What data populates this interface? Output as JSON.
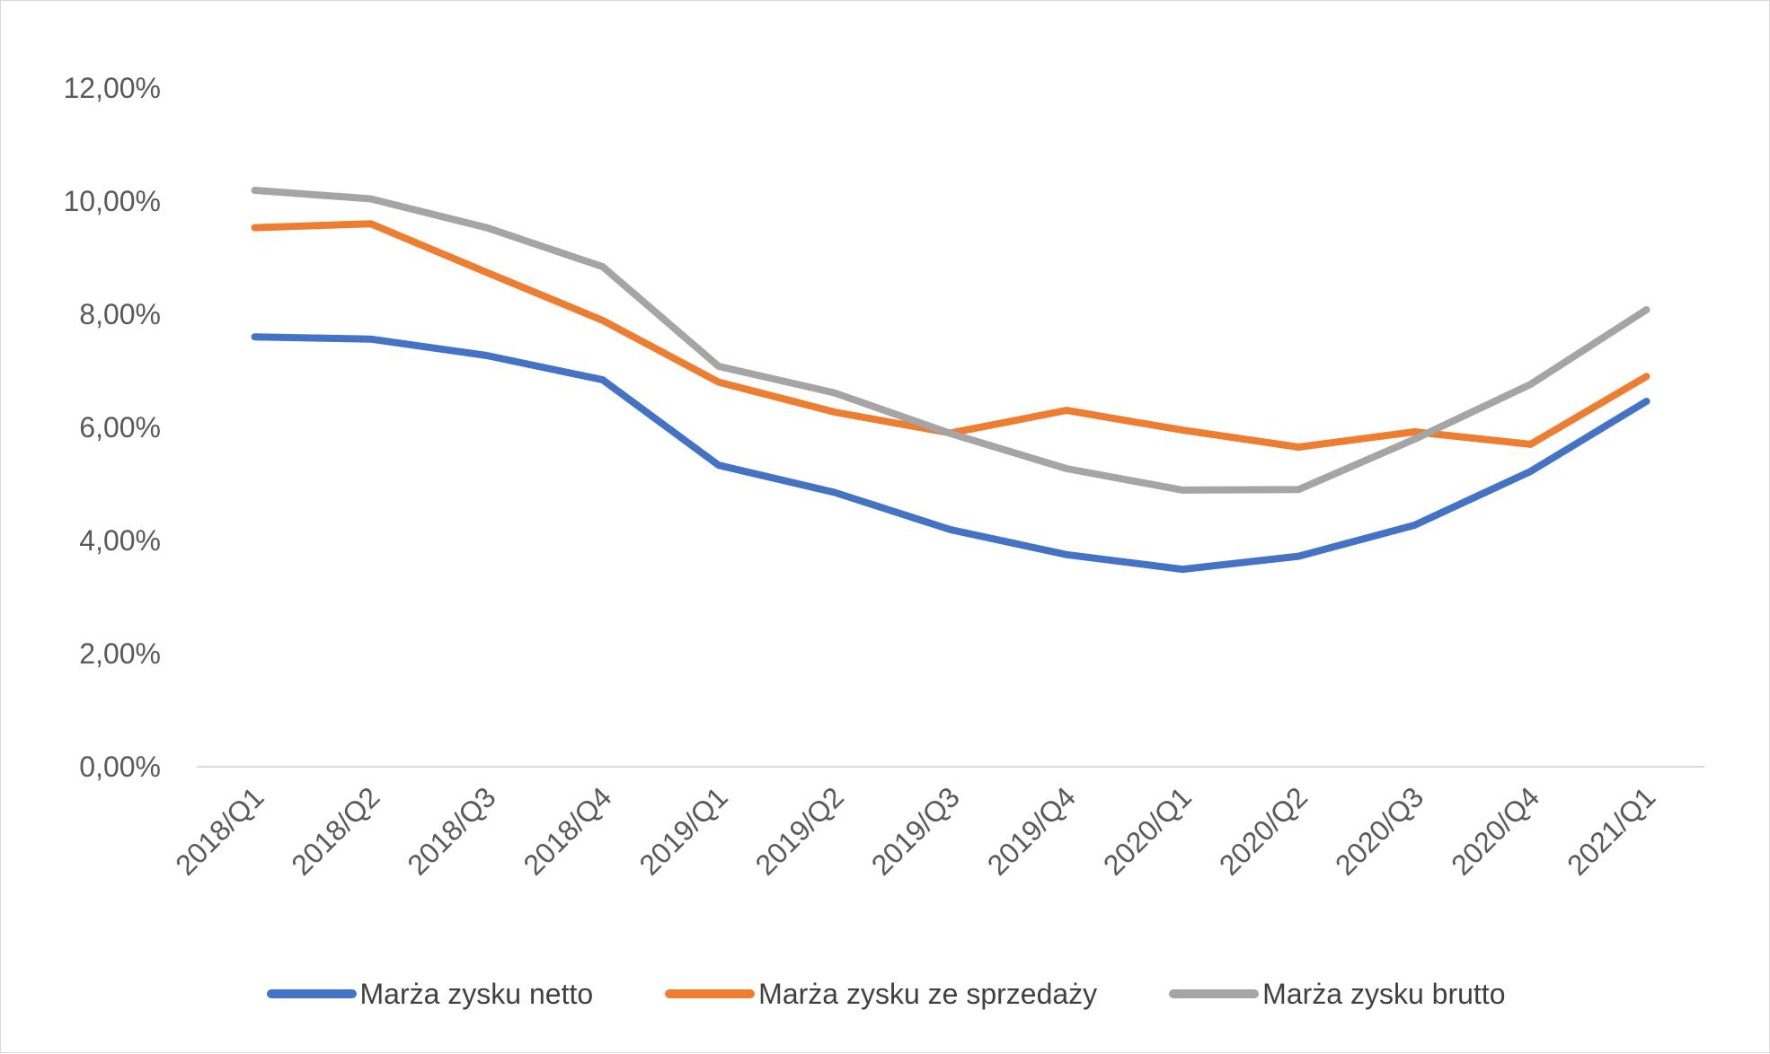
{
  "chart_data": {
    "type": "line",
    "categories": [
      "2018/Q1",
      "2018/Q2",
      "2018/Q3",
      "2018/Q4",
      "2019/Q1",
      "2019/Q2",
      "2019/Q3",
      "2019/Q4",
      "2020/Q1",
      "2020/Q2",
      "2020/Q3",
      "2020/Q4",
      "2021/Q1"
    ],
    "y_ticks": [
      "0,00%",
      "2,00%",
      "4,00%",
      "6,00%",
      "8,00%",
      "10,00%",
      "12,00%"
    ],
    "ylim": [
      0,
      12
    ],
    "grid": "baseline only",
    "legend_position": "bottom",
    "series": [
      {
        "name": "Marża zysku netto",
        "color": "#4472c4",
        "values": [
          7.6,
          7.56,
          7.27,
          6.84,
          5.33,
          4.85,
          4.19,
          3.75,
          3.49,
          3.72,
          4.27,
          5.22,
          6.46
        ]
      },
      {
        "name": "Marża zysku ze sprzedaży",
        "color": "#ed7d31",
        "values": [
          9.53,
          9.6,
          8.74,
          7.89,
          6.8,
          6.27,
          5.9,
          6.3,
          5.95,
          5.65,
          5.92,
          5.7,
          6.9
        ]
      },
      {
        "name": "Marża zysku brutto",
        "color": "#a5a5a5",
        "values": [
          10.19,
          10.04,
          9.53,
          8.84,
          7.08,
          6.61,
          5.89,
          5.27,
          4.89,
          4.9,
          5.79,
          6.76,
          8.08
        ]
      }
    ]
  }
}
